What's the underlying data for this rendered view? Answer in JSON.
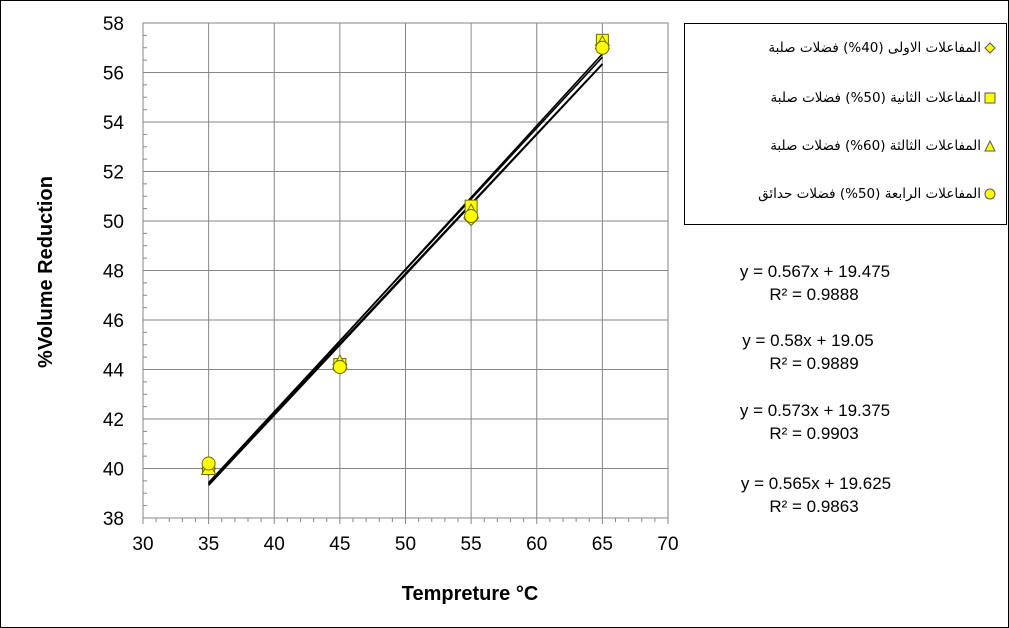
{
  "chart_data": {
    "type": "scatter",
    "title": "",
    "xlabel": "Tempreture °C",
    "ylabel": "%Volume Reduction",
    "xlim": [
      30,
      70
    ],
    "ylim": [
      38,
      58
    ],
    "x_ticks": [
      30,
      35,
      40,
      45,
      50,
      55,
      60,
      65,
      70
    ],
    "y_ticks": [
      38,
      40,
      42,
      44,
      46,
      48,
      50,
      52,
      54,
      56,
      58
    ],
    "grid": true,
    "legend_position": "top-right",
    "series": [
      {
        "name": "المفاعلات الاولى (40%) فضلات صلبة",
        "marker": "diamond",
        "color": "#FFFF00",
        "x": [
          35,
          45,
          55,
          65
        ],
        "y": [
          40.0,
          44.2,
          50.1,
          57.1
        ]
      },
      {
        "name": "المفاعلات الثانية (50%) فضلات صلبة",
        "marker": "square",
        "color": "#FFFF00",
        "x": [
          35,
          45,
          55,
          65
        ],
        "y": [
          40.0,
          44.2,
          50.6,
          57.3
        ]
      },
      {
        "name": "المفاعلات الثالثة (60%) فضلات صلبة",
        "marker": "triangle",
        "color": "#FFFF00",
        "x": [
          35,
          45,
          55,
          65
        ],
        "y": [
          40.0,
          44.3,
          50.4,
          57.2
        ]
      },
      {
        "name": "المفاعلات الرابعة (50%) فضلات حدائق",
        "marker": "circle",
        "color": "#FFFF00",
        "x": [
          35,
          45,
          55,
          65
        ],
        "y": [
          40.2,
          44.1,
          50.2,
          57.0
        ]
      }
    ],
    "trendlines": [
      {
        "equation": "y = 0.567x + 19.475",
        "r2": "R² = 0.9888",
        "slope": 0.567,
        "intercept": 19.475
      },
      {
        "equation": "y = 0.58x + 19.05",
        "r2": "R² = 0.9889",
        "slope": 0.58,
        "intercept": 19.05
      },
      {
        "equation": "y = 0.573x + 19.375",
        "r2": "R² = 0.9903",
        "slope": 0.573,
        "intercept": 19.375
      },
      {
        "equation": "y = 0.565x + 19.625",
        "r2": "R² = 0.9863",
        "slope": 0.565,
        "intercept": 19.625
      }
    ]
  }
}
